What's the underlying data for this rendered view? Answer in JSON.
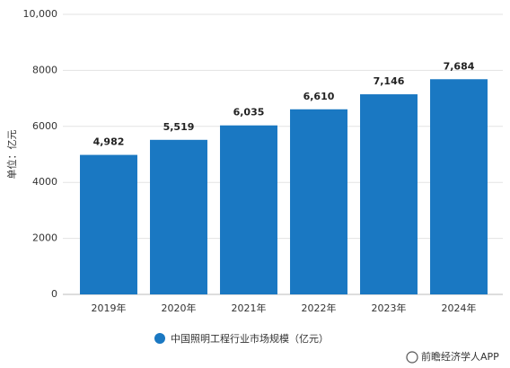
{
  "chart_data": {
    "type": "bar",
    "y_label": "单位：亿元",
    "categories": [
      "2019年",
      "2020年",
      "2021年",
      "2022年",
      "2023年",
      "2024年"
    ],
    "values": [
      4982,
      5519,
      6035,
      6610,
      7146,
      7684
    ],
    "value_labels": [
      "4,982",
      "5,519",
      "6,035",
      "6,610",
      "7,146",
      "7,684"
    ],
    "legend": "中国照明工程行业市场规模（亿元）",
    "color": "#1a78c2",
    "ylim": [
      0,
      10000
    ],
    "yticks": [
      0,
      2000,
      4000,
      6000,
      8000,
      {
        "value": 10000,
        "label": "10,000"
      }
    ],
    "grid": true,
    "source": "前瞻经济学人APP"
  }
}
